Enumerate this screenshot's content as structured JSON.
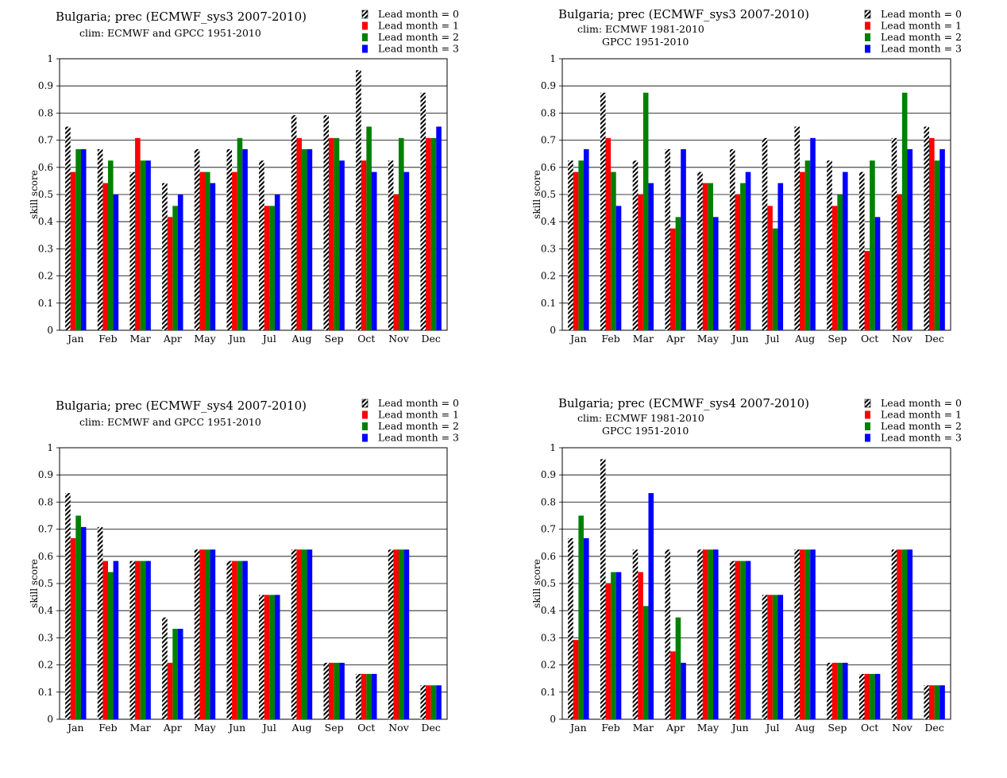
{
  "colors": {
    "lead0": "hatched-black-white",
    "lead1": "#ff0000",
    "lead2": "#008000",
    "lead3": "#0000ff"
  },
  "chart_data": [
    {
      "type": "bar",
      "title": "Bulgaria; prec (ECMWF_sys3 2007-2010)",
      "subtitle": [
        "clim: ECMWF and GPCC 1951-2010"
      ],
      "ylabel": "skill score",
      "ylim": [
        0,
        1
      ],
      "yticks": [
        "0",
        "0.1",
        "0.2",
        "0.3",
        "0.4",
        "0.5",
        "0.6",
        "0.7",
        "0.8",
        "0.9",
        "1"
      ],
      "legend_position": "top-right",
      "categories": [
        "Jan",
        "Feb",
        "Mar",
        "Apr",
        "May",
        "Jun",
        "Jul",
        "Aug",
        "Sep",
        "Oct",
        "Nov",
        "Dec"
      ],
      "series": [
        {
          "name": "Lead month = 0",
          "values": [
            0.75,
            0.667,
            0.583,
            0.542,
            0.667,
            0.667,
            0.625,
            0.792,
            0.792,
            0.958,
            0.625,
            0.875
          ]
        },
        {
          "name": "Lead month = 1",
          "values": [
            0.583,
            0.542,
            0.708,
            0.417,
            0.583,
            0.583,
            0.458,
            0.708,
            0.708,
            0.625,
            0.5,
            0.708
          ]
        },
        {
          "name": "Lead month = 2",
          "values": [
            0.667,
            0.625,
            0.625,
            0.458,
            0.583,
            0.708,
            0.458,
            0.667,
            0.708,
            0.75,
            0.708,
            0.708
          ]
        },
        {
          "name": "Lead month = 3",
          "values": [
            0.667,
            0.5,
            0.625,
            0.5,
            0.542,
            0.667,
            0.5,
            0.667,
            0.625,
            0.583,
            0.583,
            0.75
          ]
        }
      ]
    },
    {
      "type": "bar",
      "title": "Bulgaria; prec (ECMWF_sys3 2007-2010)",
      "subtitle": [
        "clim: ECMWF 1981-2010",
        "GPCC 1951-2010"
      ],
      "ylabel": "skill score",
      "ylim": [
        0,
        1
      ],
      "yticks": [
        "0",
        "0.1",
        "0.2",
        "0.3",
        "0.4",
        "0.5",
        "0.6",
        "0.7",
        "0.8",
        "0.9",
        "1"
      ],
      "legend_position": "top-right",
      "categories": [
        "Jan",
        "Feb",
        "Mar",
        "Apr",
        "May",
        "Jun",
        "Jul",
        "Aug",
        "Sep",
        "Oct",
        "Nov",
        "Dec"
      ],
      "series": [
        {
          "name": "Lead month = 0",
          "values": [
            0.625,
            0.875,
            0.625,
            0.667,
            0.583,
            0.667,
            0.708,
            0.75,
            0.625,
            0.583,
            0.708,
            0.75
          ]
        },
        {
          "name": "Lead month = 1",
          "values": [
            0.583,
            0.708,
            0.5,
            0.375,
            0.542,
            0.5,
            0.458,
            0.583,
            0.458,
            0.292,
            0.5,
            0.708
          ]
        },
        {
          "name": "Lead month = 2",
          "values": [
            0.625,
            0.583,
            0.875,
            0.417,
            0.542,
            0.542,
            0.375,
            0.625,
            0.5,
            0.625,
            0.875,
            0.625
          ]
        },
        {
          "name": "Lead month = 3",
          "values": [
            0.667,
            0.458,
            0.542,
            0.667,
            0.417,
            0.583,
            0.542,
            0.708,
            0.583,
            0.417,
            0.667,
            0.667
          ]
        }
      ]
    },
    {
      "type": "bar",
      "title": "Bulgaria; prec (ECMWF_sys4 2007-2010)",
      "subtitle": [
        "clim: ECMWF and GPCC 1951-2010"
      ],
      "ylabel": "skill score",
      "ylim": [
        0,
        1
      ],
      "yticks": [
        "0",
        "0.1",
        "0.2",
        "0.3",
        "0.4",
        "0.5",
        "0.6",
        "0.7",
        "0.8",
        "0.9",
        "1"
      ],
      "legend_position": "top-right",
      "categories": [
        "Jan",
        "Feb",
        "Mar",
        "Apr",
        "May",
        "Jun",
        "Jul",
        "Aug",
        "Sep",
        "Oct",
        "Nov",
        "Dec"
      ],
      "series": [
        {
          "name": "Lead month = 0",
          "values": [
            0.833,
            0.708,
            0.583,
            0.375,
            0.625,
            0.583,
            0.458,
            0.625,
            0.208,
            0.167,
            0.625,
            0.125
          ]
        },
        {
          "name": "Lead month = 1",
          "values": [
            0.667,
            0.583,
            0.583,
            0.208,
            0.625,
            0.583,
            0.458,
            0.625,
            0.208,
            0.167,
            0.625,
            0.125
          ]
        },
        {
          "name": "Lead month = 2",
          "values": [
            0.75,
            0.542,
            0.583,
            0.333,
            0.625,
            0.583,
            0.458,
            0.625,
            0.208,
            0.167,
            0.625,
            0.125
          ]
        },
        {
          "name": "Lead month = 3",
          "values": [
            0.708,
            0.583,
            0.583,
            0.333,
            0.625,
            0.583,
            0.458,
            0.625,
            0.208,
            0.167,
            0.625,
            0.125
          ]
        }
      ]
    },
    {
      "type": "bar",
      "title": "Bulgaria; prec (ECMWF_sys4 2007-2010)",
      "subtitle": [
        "clim: ECMWF 1981-2010",
        "GPCC 1951-2010"
      ],
      "ylabel": "skill score",
      "ylim": [
        0,
        1
      ],
      "yticks": [
        "0",
        "0.1",
        "0.2",
        "0.3",
        "0.4",
        "0.5",
        "0.6",
        "0.7",
        "0.8",
        "0.9",
        "1"
      ],
      "legend_position": "top-right",
      "categories": [
        "Jan",
        "Feb",
        "Mar",
        "Apr",
        "May",
        "Jun",
        "Jul",
        "Aug",
        "Sep",
        "Oct",
        "Nov",
        "Dec"
      ],
      "series": [
        {
          "name": "Lead month = 0",
          "values": [
            0.667,
            0.958,
            0.625,
            0.625,
            0.625,
            0.583,
            0.458,
            0.625,
            0.208,
            0.167,
            0.625,
            0.125
          ]
        },
        {
          "name": "Lead month = 1",
          "values": [
            0.292,
            0.5,
            0.542,
            0.25,
            0.625,
            0.583,
            0.458,
            0.625,
            0.208,
            0.167,
            0.625,
            0.125
          ]
        },
        {
          "name": "Lead month = 2",
          "values": [
            0.75,
            0.542,
            0.417,
            0.375,
            0.625,
            0.583,
            0.458,
            0.625,
            0.208,
            0.167,
            0.625,
            0.125
          ]
        },
        {
          "name": "Lead month = 3",
          "values": [
            0.667,
            0.542,
            0.833,
            0.208,
            0.625,
            0.583,
            0.458,
            0.625,
            0.208,
            0.167,
            0.625,
            0.125
          ]
        }
      ]
    }
  ]
}
